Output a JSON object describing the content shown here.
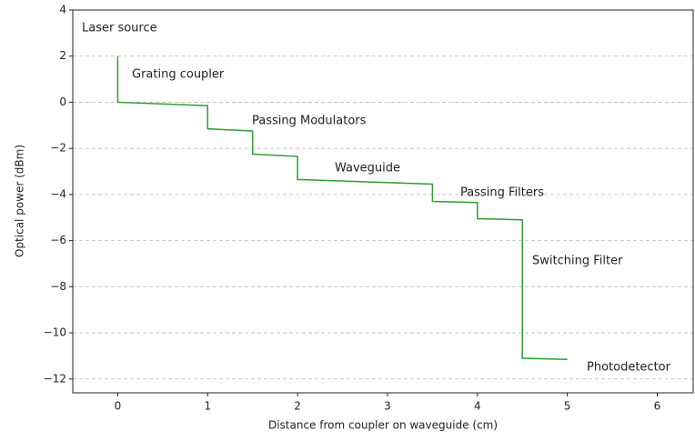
{
  "chart_data": {
    "type": "line",
    "xlabel": "Distance from coupler on waveguide (cm)",
    "ylabel": "Optical power (dBm)",
    "x": [
      0,
      0,
      1,
      1,
      1.5,
      1.5,
      2,
      2,
      3.5,
      3.5,
      4,
      4,
      4.5,
      4.5,
      5
    ],
    "series": [
      {
        "color": "#2ca02c",
        "values": [
          2,
          0,
          -0.15,
          -1.15,
          -1.25,
          -2.25,
          -2.35,
          -3.35,
          -3.55,
          -4.3,
          -4.35,
          -5.05,
          -5.1,
          -11.1,
          -11.15
        ]
      }
    ],
    "xlim": [
      -0.5,
      6.4
    ],
    "ylim": [
      -12.6,
      4
    ],
    "xticks": [
      0,
      1,
      2,
      3,
      4,
      5,
      6
    ],
    "yticks": [
      {
        "value": -12,
        "label": "−12"
      },
      {
        "value": -10,
        "label": "−10"
      },
      {
        "value": -8,
        "label": "−8"
      },
      {
        "value": -6,
        "label": "−6"
      },
      {
        "value": -4,
        "label": "−4"
      },
      {
        "value": -2,
        "label": "−2"
      },
      0,
      2,
      4
    ],
    "grid": true,
    "annotations": [
      "Laser source",
      "Grating coupler",
      "Passing Modulators",
      "Waveguide",
      "Passing Filters",
      "Switching Filter",
      "Photodetector"
    ]
  }
}
